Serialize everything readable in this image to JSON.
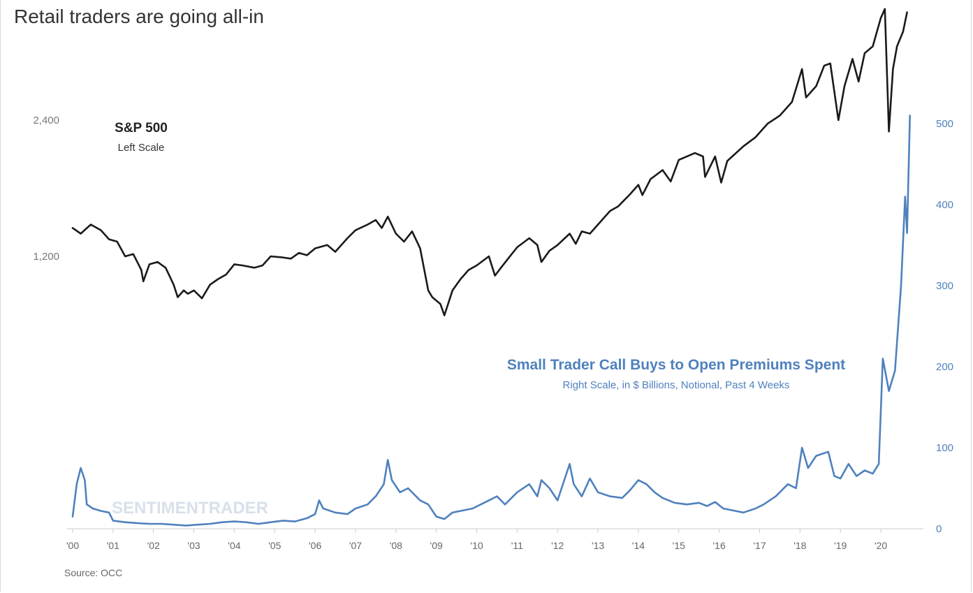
{
  "title": "Retail traders are going all-in",
  "source": "Source: OCC",
  "watermark": "SENTIMENTRADER",
  "colors": {
    "spx": "#1a1a1a",
    "premiums": "#4f81bd",
    "axis": "#cccccc"
  },
  "chart_data": {
    "type": "line",
    "x_tick_labels": [
      "'00",
      "'01",
      "'02",
      "'03",
      "'04",
      "'05",
      "'06",
      "'07",
      "'08",
      "'09",
      "'10",
      "'11",
      "'12",
      "'13",
      "'14",
      "'15",
      "'16",
      "'17",
      "'18",
      "'19",
      "'20"
    ],
    "xlim": [
      2000.0,
      2020.95
    ],
    "y_left": {
      "ticks": [
        1200,
        2400
      ],
      "tick_labels": [
        "1,200",
        "2,400"
      ],
      "lim": [
        200,
        3550
      ]
    },
    "y_right": {
      "ticks": [
        0,
        100,
        200,
        300,
        400,
        500
      ],
      "tick_labels": [
        "0",
        "100",
        "200",
        "300",
        "400",
        "500"
      ],
      "lim": [
        0,
        510
      ]
    },
    "annotations": {
      "spx_title": "S&P 500",
      "spx_sub": "Left Scale",
      "premiums_title": "Small Trader Call Buys to Open Premiums Spent",
      "premiums_sub": "Right Scale, in $ Billions, Notional, Past 4 Weeks"
    },
    "series": [
      {
        "name": "S&P 500",
        "axis": "left",
        "points": [
          [
            2000.0,
            1450
          ],
          [
            2000.2,
            1400
          ],
          [
            2000.45,
            1480
          ],
          [
            2000.7,
            1430
          ],
          [
            2000.9,
            1350
          ],
          [
            2001.1,
            1330
          ],
          [
            2001.3,
            1200
          ],
          [
            2001.5,
            1220
          ],
          [
            2001.7,
            1080
          ],
          [
            2001.75,
            980
          ],
          [
            2001.9,
            1130
          ],
          [
            2002.1,
            1150
          ],
          [
            2002.3,
            1100
          ],
          [
            2002.5,
            950
          ],
          [
            2002.6,
            840
          ],
          [
            2002.75,
            900
          ],
          [
            2002.85,
            870
          ],
          [
            2003.0,
            900
          ],
          [
            2003.2,
            830
          ],
          [
            2003.4,
            950
          ],
          [
            2003.6,
            1000
          ],
          [
            2003.8,
            1040
          ],
          [
            2004.0,
            1130
          ],
          [
            2004.2,
            1120
          ],
          [
            2004.5,
            1100
          ],
          [
            2004.7,
            1120
          ],
          [
            2004.9,
            1200
          ],
          [
            2005.2,
            1190
          ],
          [
            2005.4,
            1180
          ],
          [
            2005.6,
            1230
          ],
          [
            2005.8,
            1210
          ],
          [
            2006.0,
            1270
          ],
          [
            2006.3,
            1300
          ],
          [
            2006.5,
            1240
          ],
          [
            2006.8,
            1360
          ],
          [
            2007.0,
            1430
          ],
          [
            2007.3,
            1480
          ],
          [
            2007.5,
            1520
          ],
          [
            2007.65,
            1450
          ],
          [
            2007.8,
            1550
          ],
          [
            2008.0,
            1400
          ],
          [
            2008.2,
            1330
          ],
          [
            2008.4,
            1420
          ],
          [
            2008.6,
            1270
          ],
          [
            2008.8,
            900
          ],
          [
            2008.9,
            840
          ],
          [
            2009.1,
            780
          ],
          [
            2009.2,
            680
          ],
          [
            2009.4,
            900
          ],
          [
            2009.6,
            1000
          ],
          [
            2009.8,
            1080
          ],
          [
            2010.0,
            1120
          ],
          [
            2010.3,
            1200
          ],
          [
            2010.45,
            1030
          ],
          [
            2010.6,
            1100
          ],
          [
            2010.8,
            1190
          ],
          [
            2011.0,
            1280
          ],
          [
            2011.3,
            1360
          ],
          [
            2011.5,
            1300
          ],
          [
            2011.6,
            1150
          ],
          [
            2011.8,
            1250
          ],
          [
            2012.0,
            1300
          ],
          [
            2012.3,
            1400
          ],
          [
            2012.45,
            1310
          ],
          [
            2012.6,
            1420
          ],
          [
            2012.8,
            1400
          ],
          [
            2013.0,
            1480
          ],
          [
            2013.3,
            1600
          ],
          [
            2013.5,
            1640
          ],
          [
            2013.8,
            1750
          ],
          [
            2014.0,
            1830
          ],
          [
            2014.1,
            1740
          ],
          [
            2014.3,
            1880
          ],
          [
            2014.6,
            1960
          ],
          [
            2014.8,
            1860
          ],
          [
            2015.0,
            2050
          ],
          [
            2015.4,
            2110
          ],
          [
            2015.6,
            2080
          ],
          [
            2015.65,
            1900
          ],
          [
            2015.9,
            2080
          ],
          [
            2016.05,
            1850
          ],
          [
            2016.2,
            2040
          ],
          [
            2016.6,
            2170
          ],
          [
            2016.9,
            2250
          ],
          [
            2017.2,
            2370
          ],
          [
            2017.5,
            2440
          ],
          [
            2017.8,
            2560
          ],
          [
            2018.05,
            2850
          ],
          [
            2018.15,
            2600
          ],
          [
            2018.4,
            2700
          ],
          [
            2018.6,
            2880
          ],
          [
            2018.75,
            2900
          ],
          [
            2018.95,
            2400
          ],
          [
            2019.1,
            2700
          ],
          [
            2019.3,
            2940
          ],
          [
            2019.45,
            2740
          ],
          [
            2019.6,
            2990
          ],
          [
            2019.8,
            3050
          ],
          [
            2020.0,
            3300
          ],
          [
            2020.1,
            3380
          ],
          [
            2020.2,
            2300
          ],
          [
            2020.3,
            2850
          ],
          [
            2020.4,
            3050
          ],
          [
            2020.55,
            3180
          ],
          [
            2020.65,
            3350
          ]
        ]
      },
      {
        "name": "Small Trader Call Buys to Open Premiums Spent",
        "axis": "right",
        "points": [
          [
            2000.0,
            15
          ],
          [
            2000.1,
            55
          ],
          [
            2000.2,
            75
          ],
          [
            2000.3,
            60
          ],
          [
            2000.35,
            30
          ],
          [
            2000.5,
            25
          ],
          [
            2000.7,
            22
          ],
          [
            2000.9,
            20
          ],
          [
            2001.0,
            10
          ],
          [
            2001.3,
            8
          ],
          [
            2001.6,
            7
          ],
          [
            2001.9,
            6
          ],
          [
            2002.2,
            6
          ],
          [
            2002.5,
            5
          ],
          [
            2002.8,
            4
          ],
          [
            2003.1,
            5
          ],
          [
            2003.4,
            6
          ],
          [
            2003.7,
            8
          ],
          [
            2004.0,
            9
          ],
          [
            2004.3,
            8
          ],
          [
            2004.6,
            6
          ],
          [
            2004.9,
            8
          ],
          [
            2005.2,
            10
          ],
          [
            2005.5,
            9
          ],
          [
            2005.8,
            13
          ],
          [
            2006.0,
            18
          ],
          [
            2006.1,
            35
          ],
          [
            2006.2,
            25
          ],
          [
            2006.5,
            20
          ],
          [
            2006.8,
            18
          ],
          [
            2007.0,
            25
          ],
          [
            2007.3,
            30
          ],
          [
            2007.5,
            40
          ],
          [
            2007.7,
            55
          ],
          [
            2007.8,
            85
          ],
          [
            2007.9,
            60
          ],
          [
            2008.1,
            45
          ],
          [
            2008.3,
            50
          ],
          [
            2008.6,
            35
          ],
          [
            2008.8,
            30
          ],
          [
            2009.0,
            15
          ],
          [
            2009.2,
            12
          ],
          [
            2009.4,
            20
          ],
          [
            2009.6,
            22
          ],
          [
            2009.9,
            25
          ],
          [
            2010.1,
            30
          ],
          [
            2010.3,
            35
          ],
          [
            2010.5,
            40
          ],
          [
            2010.7,
            30
          ],
          [
            2011.0,
            45
          ],
          [
            2011.3,
            55
          ],
          [
            2011.5,
            40
          ],
          [
            2011.6,
            60
          ],
          [
            2011.8,
            50
          ],
          [
            2012.0,
            35
          ],
          [
            2012.2,
            65
          ],
          [
            2012.3,
            80
          ],
          [
            2012.4,
            55
          ],
          [
            2012.6,
            40
          ],
          [
            2012.8,
            62
          ],
          [
            2013.0,
            45
          ],
          [
            2013.3,
            40
          ],
          [
            2013.6,
            38
          ],
          [
            2013.8,
            48
          ],
          [
            2014.0,
            60
          ],
          [
            2014.2,
            55
          ],
          [
            2014.4,
            45
          ],
          [
            2014.6,
            38
          ],
          [
            2014.9,
            32
          ],
          [
            2015.2,
            30
          ],
          [
            2015.5,
            32
          ],
          [
            2015.7,
            28
          ],
          [
            2015.9,
            33
          ],
          [
            2016.1,
            25
          ],
          [
            2016.4,
            22
          ],
          [
            2016.6,
            20
          ],
          [
            2016.9,
            25
          ],
          [
            2017.1,
            30
          ],
          [
            2017.4,
            40
          ],
          [
            2017.7,
            55
          ],
          [
            2017.9,
            50
          ],
          [
            2018.05,
            100
          ],
          [
            2018.2,
            75
          ],
          [
            2018.4,
            90
          ],
          [
            2018.7,
            95
          ],
          [
            2018.85,
            65
          ],
          [
            2019.0,
            62
          ],
          [
            2019.2,
            80
          ],
          [
            2019.4,
            65
          ],
          [
            2019.6,
            72
          ],
          [
            2019.8,
            68
          ],
          [
            2019.95,
            80
          ],
          [
            2020.05,
            210
          ],
          [
            2020.2,
            170
          ],
          [
            2020.35,
            195
          ],
          [
            2020.5,
            300
          ],
          [
            2020.6,
            410
          ],
          [
            2020.65,
            365
          ],
          [
            2020.72,
            510
          ]
        ]
      }
    ]
  }
}
